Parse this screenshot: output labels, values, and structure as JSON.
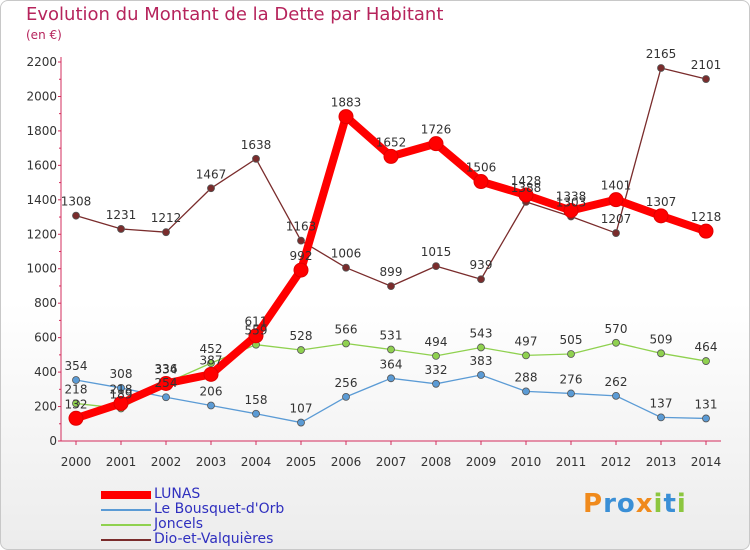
{
  "chart_data": {
    "type": "line",
    "title": "Evolution du Montant de la Dette par Habitant",
    "subtitle": "(en €)",
    "xlabel": "",
    "ylabel": "",
    "categories": [
      "2000",
      "2001",
      "2002",
      "2003",
      "2004",
      "2005",
      "2006",
      "2007",
      "2008",
      "2009",
      "2010",
      "2011",
      "2012",
      "2013",
      "2014"
    ],
    "ylim": [
      0,
      2200
    ],
    "yticks": [
      0,
      200,
      400,
      600,
      800,
      1000,
      1200,
      1400,
      1600,
      1800,
      2000,
      2200
    ],
    "legend_position": "bottom-left",
    "series": [
      {
        "name": "LUNAS",
        "color": "#ff0000",
        "values": [
          132,
          218,
          334,
          387,
          611,
          992,
          1883,
          1652,
          1726,
          1506,
          1428,
          1338,
          1401,
          1307,
          1218
        ]
      },
      {
        "name": "Le Bousquet-d'Orb",
        "color": "#5b9bd5",
        "values": [
          354,
          308,
          254,
          206,
          158,
          107,
          256,
          364,
          332,
          383,
          288,
          276,
          262,
          137,
          131
        ]
      },
      {
        "name": "Joncels",
        "color": "#8fd14f",
        "values": [
          218,
          189,
          336,
          452,
          559,
          528,
          566,
          531,
          494,
          543,
          497,
          505,
          570,
          509,
          464
        ]
      },
      {
        "name": "Dio-et-Valquières",
        "color": "#7a2c2c",
        "values": [
          1308,
          1231,
          1212,
          1467,
          1638,
          1163,
          1006,
          899,
          1015,
          939,
          1388,
          1303,
          1207,
          2165,
          2101
        ]
      }
    ]
  },
  "logo": {
    "text": "Proxiti",
    "letters": [
      "P",
      "r",
      "o",
      "x",
      "i",
      "t",
      "i"
    ],
    "colors": [
      "#f08a1c",
      "#3a8fd6",
      "#3a8fd6",
      "#f08a1c",
      "#8cc63f",
      "#3a8fd6",
      "#8cc63f"
    ]
  }
}
